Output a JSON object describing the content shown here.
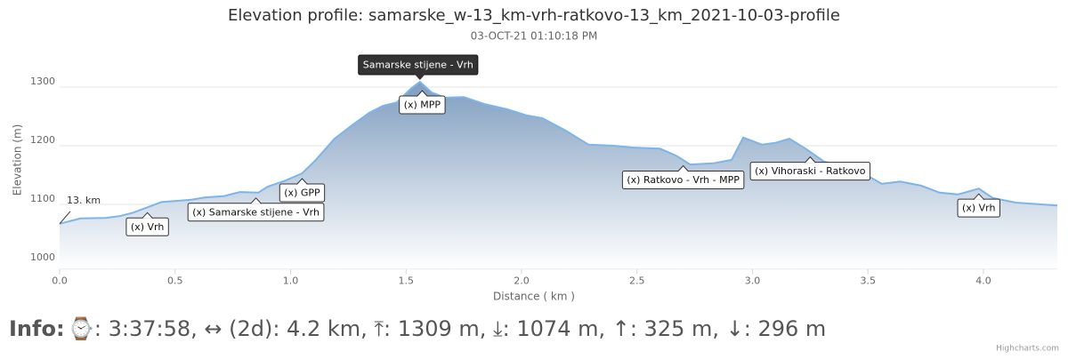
{
  "chart_data": {
    "type": "area",
    "title": "Elevation profile: samarske_w-13_km-vrh-ratkovo-13_km_2021-10-03-profile",
    "subtitle": "03-OCT-21 01:10:18 PM",
    "x_label": "Distance ( km )",
    "y_label": "Elevation (m)",
    "color": "#7cb5ec",
    "fill_top": "#7f9dbf",
    "xlim": [
      0,
      4.32
    ],
    "ylim": [
      990,
      1310
    ],
    "xticks": [
      {
        "value": 0,
        "label": "0.0"
      },
      0.5,
      {
        "value": 1,
        "label": "1.0"
      },
      1.5,
      {
        "value": 2,
        "label": "2.0"
      },
      2.5,
      {
        "value": 3,
        "label": "3.0"
      },
      3.5,
      {
        "value": 4,
        "label": "4.0"
      }
    ],
    "yticks": [
      1000,
      1100,
      1200,
      1300
    ],
    "grid": true,
    "x": [
      0,
      0.09,
      0.2,
      0.26,
      0.32,
      0.38,
      0.44,
      0.51,
      0.57,
      0.63,
      0.71,
      0.78,
      0.86,
      0.9,
      0.98,
      1.05,
      1.11,
      1.19,
      1.27,
      1.34,
      1.4,
      1.46,
      1.52,
      1.56,
      1.61,
      1.67,
      1.75,
      1.84,
      1.94,
      2.02,
      2.09,
      2.19,
      2.29,
      2.4,
      2.48,
      2.6,
      2.67,
      2.73,
      2.83,
      2.91,
      2.96,
      3.04,
      3.1,
      3.16,
      3.23,
      3.31,
      3.41,
      3.48,
      3.56,
      3.64,
      3.73,
      3.81,
      3.89,
      3.98,
      4.04,
      4.14,
      4.32
    ],
    "values": [
      1067,
      1076,
      1077,
      1080,
      1086,
      1095,
      1104,
      1106,
      1108,
      1112,
      1114,
      1121,
      1120,
      1130,
      1141,
      1153,
      1176,
      1212,
      1236,
      1256,
      1268,
      1274,
      1297,
      1309,
      1291,
      1282,
      1283,
      1271,
      1262,
      1252,
      1247,
      1226,
      1202,
      1200,
      1197,
      1195,
      1183,
      1168,
      1170,
      1176,
      1214,
      1202,
      1205,
      1212,
      1195,
      1173,
      1164,
      1153,
      1135,
      1139,
      1132,
      1120,
      1117,
      1127,
      1111,
      1103,
      1098
    ],
    "start_label": {
      "x": 0,
      "y": 1067,
      "text": "13. km"
    },
    "tooltip": {
      "x": 1.56,
      "y": 1309,
      "text": "Samarske stijene - Vrh"
    },
    "annotations": [
      {
        "x": 0.38,
        "y": 1095,
        "text": "(x) Vrh"
      },
      {
        "x": 0.85,
        "y": 1120,
        "text": "(x) Samarske stijene - Vrh"
      },
      {
        "x": 1.05,
        "y": 1153,
        "text": "(x) GPP"
      },
      {
        "x": 1.57,
        "y": 1303,
        "text": "(x) MPP"
      },
      {
        "x": 2.7,
        "y": 1175,
        "text": "(x) Ratkovo - Vrh - MPP"
      },
      {
        "x": 3.25,
        "y": 1190,
        "text": "(x) Vihoraski - Ratkovo"
      },
      {
        "x": 3.98,
        "y": 1127,
        "text": "(x) Vrh"
      }
    ]
  },
  "info": {
    "label": "Info:",
    "text": "⌚: 3:37:58, ↔ (2d): 4.2 km, ⤒: 1309 m, ⤓: 1074 m, ↑: 325 m, ↓: 296 m"
  },
  "credits": "Highcharts.com"
}
